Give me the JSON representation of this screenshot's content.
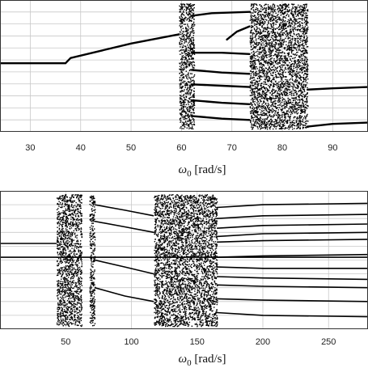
{
  "chart_data": [
    {
      "type": "scatter",
      "title": "",
      "xlabel_symbol": "ω",
      "xlabel_sub": "0",
      "xlabel_unit": " [rad/s]",
      "xlim": [
        24,
        97
      ],
      "x_ticks": [
        30,
        40,
        50,
        60,
        70,
        80,
        90
      ],
      "x_tick_labels": [
        "30",
        "40",
        "50",
        "60",
        "70",
        "80",
        "90"
      ],
      "y_grid_count": 11,
      "grid": true,
      "chaotic_bands": [
        [
          59.5,
          62.5
        ],
        [
          73.5,
          85
        ]
      ],
      "series": [
        {
          "kind": "line",
          "points": [
            [
              24,
              0.48
            ],
            [
              37,
              0.48
            ],
            [
              38,
              0.44
            ],
            [
              50,
              0.33
            ],
            [
              59.5,
              0.26
            ]
          ]
        },
        {
          "kind": "line",
          "points": [
            [
              62,
              0.12
            ],
            [
              66,
              0.1
            ],
            [
              73.5,
              0.09
            ]
          ]
        },
        {
          "kind": "line",
          "points": [
            [
              69,
              0.3
            ],
            [
              71,
              0.24
            ],
            [
              73.5,
              0.2
            ]
          ]
        },
        {
          "kind": "line",
          "points": [
            [
              62,
              0.4
            ],
            [
              68,
              0.4
            ],
            [
              73.5,
              0.41
            ]
          ]
        },
        {
          "kind": "line",
          "points": [
            [
              62,
              0.53
            ],
            [
              68,
              0.55
            ],
            [
              73.5,
              0.56
            ]
          ]
        },
        {
          "kind": "line",
          "points": [
            [
              62,
              0.64
            ],
            [
              68,
              0.65
            ],
            [
              73.5,
              0.66
            ]
          ]
        },
        {
          "kind": "line",
          "points": [
            [
              62,
              0.76
            ],
            [
              68,
              0.78
            ],
            [
              73.5,
              0.79
            ]
          ]
        },
        {
          "kind": "line",
          "points": [
            [
              62,
              0.88
            ],
            [
              68,
              0.9
            ],
            [
              73.5,
              0.91
            ]
          ]
        },
        {
          "kind": "line",
          "points": [
            [
              85,
              0.68
            ],
            [
              90,
              0.67
            ],
            [
              97,
              0.66
            ]
          ]
        },
        {
          "kind": "line",
          "points": [
            [
              85,
              0.96
            ],
            [
              90,
              0.94
            ],
            [
              97,
              0.93
            ]
          ]
        }
      ]
    },
    {
      "type": "scatter",
      "title": "",
      "xlabel_symbol": "ω",
      "xlabel_sub": "0",
      "xlabel_unit": " [rad/s]",
      "xlim": [
        0,
        280
      ],
      "x_ticks": [
        50,
        100,
        150,
        200,
        250
      ],
      "x_tick_labels": [
        "50",
        "100",
        "150",
        "200",
        "250"
      ],
      "y_grid_count": 10,
      "grid": true,
      "chaotic_bands": [
        [
          43,
          62
        ],
        [
          68,
          72
        ],
        [
          117,
          165
        ]
      ],
      "series": [
        {
          "kind": "line",
          "points": [
            [
              0,
              0.38
            ],
            [
              43,
              0.38
            ]
          ]
        },
        {
          "kind": "line",
          "points": [
            [
              165,
              0.12
            ],
            [
              200,
              0.1
            ],
            [
              280,
              0.09
            ]
          ]
        },
        {
          "kind": "line",
          "points": [
            [
              165,
              0.2
            ],
            [
              200,
              0.18
            ],
            [
              280,
              0.17
            ]
          ]
        },
        {
          "kind": "line",
          "points": [
            [
              165,
              0.27
            ],
            [
              200,
              0.25
            ],
            [
              280,
              0.24
            ]
          ]
        },
        {
          "kind": "line",
          "points": [
            [
              165,
              0.33
            ],
            [
              200,
              0.31
            ],
            [
              280,
              0.3
            ]
          ]
        },
        {
          "kind": "line",
          "points": [
            [
              165,
              0.37
            ],
            [
              200,
              0.36
            ],
            [
              280,
              0.35
            ]
          ]
        },
        {
          "kind": "line",
          "points": [
            [
              165,
              0.48
            ],
            [
              200,
              0.47
            ],
            [
              280,
              0.46
            ]
          ]
        },
        {
          "kind": "line",
          "points": [
            [
              165,
              0.55
            ],
            [
              200,
              0.56
            ],
            [
              280,
              0.56
            ]
          ]
        },
        {
          "kind": "line",
          "points": [
            [
              165,
              0.62
            ],
            [
              200,
              0.63
            ],
            [
              280,
              0.64
            ]
          ]
        },
        {
          "kind": "line",
          "points": [
            [
              165,
              0.68
            ],
            [
              200,
              0.69
            ],
            [
              280,
              0.7
            ]
          ]
        },
        {
          "kind": "line",
          "points": [
            [
              165,
              0.78
            ],
            [
              200,
              0.79
            ],
            [
              280,
              0.8
            ]
          ]
        },
        {
          "kind": "line",
          "points": [
            [
              165,
              0.88
            ],
            [
              200,
              0.9
            ],
            [
              280,
              0.91
            ]
          ]
        },
        {
          "kind": "line",
          "points": [
            [
              72,
              0.1
            ],
            [
              95,
              0.14
            ],
            [
              117,
              0.18
            ]
          ]
        },
        {
          "kind": "line",
          "points": [
            [
              72,
              0.22
            ],
            [
              95,
              0.26
            ],
            [
              117,
              0.3
            ]
          ]
        },
        {
          "kind": "line",
          "points": [
            [
              72,
              0.5
            ],
            [
              95,
              0.55
            ],
            [
              117,
              0.6
            ]
          ]
        },
        {
          "kind": "line",
          "points": [
            [
              72,
              0.7
            ],
            [
              95,
              0.76
            ],
            [
              117,
              0.8
            ]
          ]
        },
        {
          "kind": "line",
          "points": [
            [
              0,
              0.48
            ],
            [
              280,
              0.48
            ]
          ]
        }
      ]
    }
  ]
}
